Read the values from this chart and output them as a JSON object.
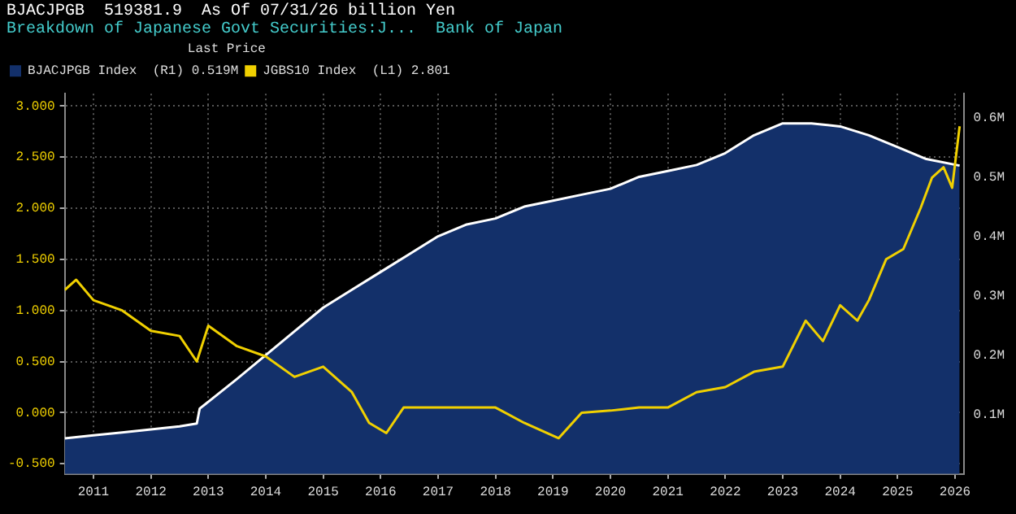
{
  "chart_data": {
    "type": "line",
    "title": "BJACJPGB  519381.9  As Of 07/31/26 billion Yen",
    "subtitle": "Breakdown of Japanese Govt Securities:J...  Bank of Japan",
    "legend_title": "Last Price",
    "legend": "top left",
    "grid": true,
    "marker": "none",
    "line_style": "solid",
    "xlim": [
      2011.0,
      2026.65
    ],
    "xticks": [
      {
        "value": 2011.5,
        "label": "2011"
      },
      {
        "value": 2012.5,
        "label": "2012"
      },
      {
        "value": 2013.5,
        "label": "2013"
      },
      {
        "value": 2014.5,
        "label": "2014"
      },
      {
        "value": 2015.5,
        "label": "2015"
      },
      {
        "value": 2016.5,
        "label": "2016"
      },
      {
        "value": 2017.5,
        "label": "2017"
      },
      {
        "value": 2018.5,
        "label": "2018"
      },
      {
        "value": 2019.5,
        "label": "2019"
      },
      {
        "value": 2020.5,
        "label": "2020"
      },
      {
        "value": 2021.5,
        "label": "2021"
      },
      {
        "value": 2022.5,
        "label": "2022"
      },
      {
        "value": 2023.5,
        "label": "2023"
      },
      {
        "value": 2024.5,
        "label": "2024"
      },
      {
        "value": 2025.5,
        "label": "2025"
      },
      {
        "value": 2026.5,
        "label": "2026"
      }
    ],
    "ylim": [
      -0.6,
      3.12
    ],
    "yticks": [
      {
        "value": -0.5,
        "label": "-0.500"
      },
      {
        "value": 0,
        "label": "0.000"
      },
      {
        "value": 0.5,
        "label": "0.500"
      },
      {
        "value": 1,
        "label": "1.000"
      },
      {
        "value": 1.5,
        "label": "1.500"
      },
      {
        "value": 2,
        "label": "2.000"
      },
      {
        "value": 2.5,
        "label": "2.500"
      },
      {
        "value": 3,
        "label": "3.000"
      }
    ],
    "y2lim": [
      0,
      0.64
    ],
    "y2ticks": [
      {
        "value": 0.1,
        "label": "0.1M"
      },
      {
        "value": 0.2,
        "label": "0.2M"
      },
      {
        "value": 0.3,
        "label": "0.3M"
      },
      {
        "value": 0.4,
        "label": "0.4M"
      },
      {
        "value": 0.5,
        "label": "0.5M"
      },
      {
        "value": 0.6,
        "label": "0.6M"
      }
    ],
    "series": [
      {
        "name": "BJACJPGB Index  (R1) 0.519M",
        "type": "area",
        "axis": "y2",
        "color": "#13306a",
        "x": [
          2011.0,
          2011.5,
          2012.0,
          2012.5,
          2013.0,
          2013.3,
          2013.35,
          2014.0,
          2014.5,
          2015.0,
          2015.5,
          2016.0,
          2016.5,
          2017.0,
          2017.5,
          2018.0,
          2018.5,
          2019.0,
          2019.5,
          2020.0,
          2020.5,
          2021.0,
          2021.5,
          2022.0,
          2022.5,
          2023.0,
          2023.5,
          2024.0,
          2024.5,
          2025.0,
          2025.5,
          2026.0,
          2026.58
        ],
        "values": [
          0.06,
          0.065,
          0.07,
          0.075,
          0.08,
          0.085,
          0.11,
          0.16,
          0.2,
          0.24,
          0.28,
          0.31,
          0.34,
          0.37,
          0.4,
          0.42,
          0.43,
          0.45,
          0.46,
          0.47,
          0.48,
          0.5,
          0.51,
          0.52,
          0.54,
          0.57,
          0.59,
          0.59,
          0.585,
          0.57,
          0.55,
          0.53,
          0.519
        ]
      },
      {
        "name": "JGBS10 Index  (L1) 2.801",
        "color": "#f0d000",
        "x": [
          2011.0,
          2011.2,
          2011.5,
          2012.0,
          2012.5,
          2013.0,
          2013.3,
          2013.5,
          2014.0,
          2014.5,
          2015.0,
          2015.5,
          2016.0,
          2016.3,
          2016.6,
          2016.9,
          2017.5,
          2018.0,
          2018.5,
          2019.0,
          2019.6,
          2020.0,
          2020.5,
          2021.0,
          2021.5,
          2022.0,
          2022.5,
          2023.0,
          2023.5,
          2023.9,
          2024.2,
          2024.5,
          2024.8,
          2025.0,
          2025.3,
          2025.6,
          2025.9,
          2026.1,
          2026.3,
          2026.45,
          2026.58
        ],
        "values": [
          1.2,
          1.3,
          1.1,
          1.0,
          0.8,
          0.75,
          0.5,
          0.85,
          0.65,
          0.55,
          0.35,
          0.45,
          0.2,
          -0.1,
          -0.2,
          0.05,
          0.05,
          0.05,
          0.05,
          -0.1,
          -0.25,
          0.0,
          0.02,
          0.05,
          0.05,
          0.2,
          0.25,
          0.4,
          0.45,
          0.9,
          0.7,
          1.05,
          0.9,
          1.1,
          1.5,
          1.6,
          2.0,
          2.3,
          2.4,
          2.2,
          2.801
        ]
      }
    ]
  }
}
